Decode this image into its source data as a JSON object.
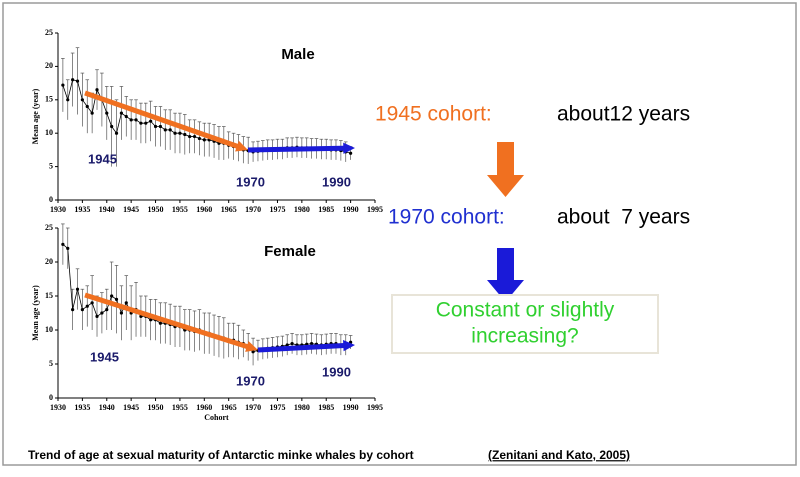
{
  "chart_data": [
    {
      "type": "line",
      "title": "Male",
      "ylabel": "Mean age (year)",
      "x": [
        1931,
        1932,
        1933,
        1934,
        1935,
        1936,
        1937,
        1938,
        1939,
        1940,
        1941,
        1942,
        1943,
        1944,
        1945,
        1946,
        1947,
        1948,
        1949,
        1950,
        1951,
        1952,
        1953,
        1954,
        1955,
        1956,
        1957,
        1958,
        1959,
        1960,
        1961,
        1962,
        1963,
        1964,
        1965,
        1966,
        1967,
        1968,
        1969,
        1970,
        1971,
        1972,
        1973,
        1974,
        1975,
        1976,
        1977,
        1978,
        1979,
        1980,
        1981,
        1982,
        1983,
        1984,
        1985,
        1986,
        1987,
        1988,
        1989,
        1990
      ],
      "values": [
        17.2,
        15,
        18,
        17.8,
        15,
        14,
        13,
        16.5,
        15,
        13,
        11,
        10,
        13,
        12.5,
        12,
        12,
        11.5,
        11.5,
        11.8,
        11,
        11,
        10.5,
        10.5,
        10,
        10,
        9.8,
        9.5,
        9.5,
        9.2,
        9,
        9,
        8.8,
        8.5,
        8.5,
        8.2,
        8,
        7.8,
        7.5,
        7.4,
        7.2,
        7.3,
        7.4,
        7.5,
        7.5,
        7.6,
        7.6,
        7.8,
        7.8,
        7.9,
        7.8,
        7.8,
        7.7,
        7.7,
        7.6,
        7.6,
        7.5,
        7.5,
        7.4,
        7.2,
        7.0
      ],
      "errors": [
        4,
        3,
        4,
        5,
        4,
        4,
        3,
        3,
        4,
        4,
        6,
        5,
        4,
        3,
        3,
        3,
        3,
        3,
        3,
        3,
        3,
        3,
        3,
        3,
        3,
        3,
        2.5,
        2.5,
        2.5,
        2.5,
        2.5,
        2.5,
        2.5,
        2.5,
        2,
        2,
        2,
        2,
        2,
        1.5,
        1.5,
        1.5,
        1.5,
        1.5,
        1.5,
        1.5,
        1.5,
        1.5,
        1.5,
        1.5,
        1.5,
        1.5,
        1.5,
        1.5,
        1.5,
        1.5,
        1.5,
        1.5,
        1.5,
        1
      ],
      "color": "#000000",
      "xlim": [
        1930,
        1995
      ],
      "ylim": [
        0,
        25
      ],
      "xticks": [
        1930,
        1935,
        1940,
        1945,
        1950,
        1955,
        1960,
        1965,
        1970,
        1975,
        1980,
        1985,
        1990,
        1995
      ],
      "yticks": [
        0,
        5,
        10,
        15,
        20,
        25
      ],
      "annotations": [
        "1945",
        "1970",
        "1990"
      ]
    },
    {
      "type": "line",
      "title": "Female",
      "ylabel": "Mean age (year)",
      "xlabel": "Cohort",
      "x": [
        1931,
        1932,
        1933,
        1934,
        1935,
        1936,
        1937,
        1938,
        1939,
        1940,
        1941,
        1942,
        1943,
        1944,
        1945,
        1946,
        1947,
        1948,
        1949,
        1950,
        1951,
        1952,
        1953,
        1954,
        1955,
        1956,
        1957,
        1958,
        1959,
        1960,
        1961,
        1962,
        1963,
        1964,
        1965,
        1966,
        1967,
        1968,
        1969,
        1970,
        1971,
        1972,
        1973,
        1974,
        1975,
        1976,
        1977,
        1978,
        1979,
        1980,
        1981,
        1982,
        1983,
        1984,
        1985,
        1986,
        1987,
        1988,
        1989,
        1990
      ],
      "values": [
        22.6,
        22,
        13,
        16,
        13,
        13.5,
        14,
        12,
        12.5,
        13,
        15,
        14.5,
        12.5,
        14,
        12.5,
        13,
        12,
        12,
        11.5,
        11.5,
        11,
        11,
        10.8,
        10.5,
        10.5,
        10,
        10,
        9.8,
        10,
        9.5,
        9.5,
        9.2,
        9,
        8.8,
        8.5,
        8.5,
        8.2,
        8,
        7.5,
        6.8,
        7,
        7.2,
        7.3,
        7.4,
        7.5,
        7.6,
        7.8,
        8,
        7.8,
        7.8,
        7.9,
        8,
        7.9,
        7.8,
        7.9,
        8,
        8,
        7.8,
        7.8,
        8.2
      ],
      "errors": [
        3,
        3,
        3,
        3,
        3,
        3,
        4,
        3,
        3,
        3,
        5,
        5,
        4,
        4,
        4,
        4,
        3,
        3,
        3,
        3,
        3,
        3,
        3,
        3,
        3,
        3,
        3,
        3,
        3,
        3,
        3,
        3,
        3,
        3,
        2.5,
        2.5,
        2.5,
        2,
        2,
        2,
        1.5,
        1.5,
        1.5,
        1.5,
        1.5,
        1.5,
        1.5,
        1.5,
        1.5,
        1.5,
        1.5,
        1.5,
        1.5,
        1.5,
        1.5,
        1.5,
        1.5,
        1.5,
        1.5,
        1
      ],
      "color": "#000000",
      "xlim": [
        1930,
        1995
      ],
      "ylim": [
        0,
        25
      ],
      "xticks": [
        1930,
        1935,
        1940,
        1945,
        1950,
        1955,
        1960,
        1965,
        1970,
        1975,
        1980,
        1985,
        1990,
        1995
      ],
      "yticks": [
        0,
        5,
        10,
        15,
        20,
        25
      ],
      "annotations": [
        "1945",
        "1970",
        "1990"
      ]
    }
  ],
  "panel": {
    "line1": {
      "label": "1945 cohort:",
      "text": "about12 years"
    },
    "line2": {
      "label": "1970 cohort:",
      "text": "about  7 years"
    },
    "box": [
      "Constant or slightly",
      "increasing?"
    ]
  },
  "caption": {
    "text": "Trend of age at sexual maturity of Antarctic minke whales by cohort",
    "source": "(Zenitani and Kato, 2005)"
  }
}
